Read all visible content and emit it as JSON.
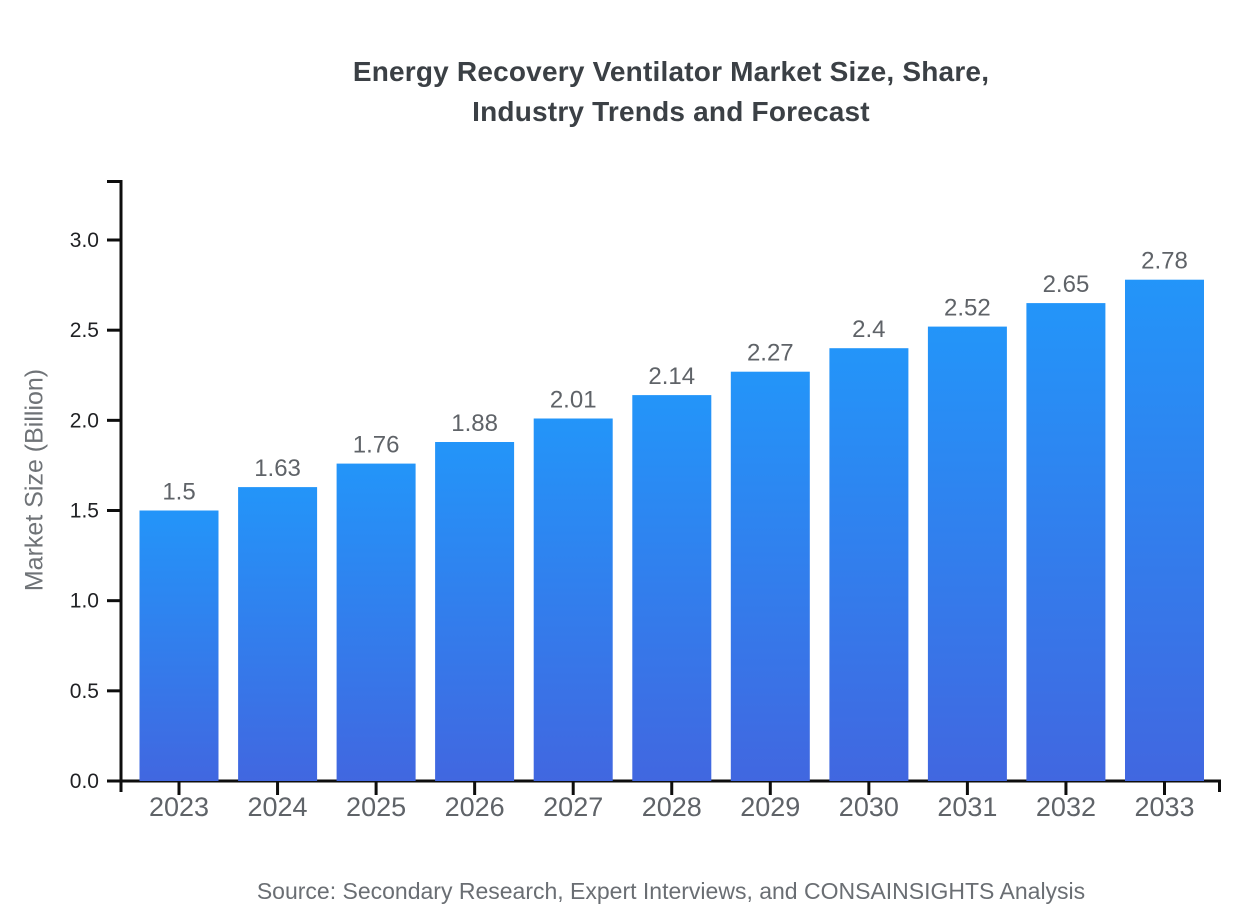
{
  "header": {
    "title": "Energy Recovery Ventilator Market Size, Share,\nIndustry Trends and Forecast"
  },
  "footer": {
    "source": "Source: Secondary Research, Expert Interviews, and CONSAINSIGHTS Analysis"
  },
  "chart_data": {
    "type": "bar",
    "title": "Energy Recovery Ventilator Market Size, Share, Industry Trends and Forecast",
    "xlabel": "",
    "ylabel": "Market Size (Billion)",
    "categories": [
      "2023",
      "2024",
      "2025",
      "2026",
      "2027",
      "2028",
      "2029",
      "2030",
      "2031",
      "2032",
      "2033"
    ],
    "values": [
      1.5,
      1.63,
      1.76,
      1.88,
      2.01,
      2.14,
      2.27,
      2.4,
      2.52,
      2.65,
      2.78
    ],
    "value_labels": [
      "1.5",
      "1.63",
      "1.76",
      "1.88",
      "2.01",
      "2.14",
      "2.27",
      "2.4",
      "2.52",
      "2.65",
      "2.78"
    ],
    "yticks": [
      0.0,
      0.5,
      1.0,
      1.5,
      2.0,
      2.5,
      3.0
    ],
    "ytick_labels": [
      "0.0",
      "0.5",
      "1.0",
      "1.5",
      "2.0",
      "2.5",
      "3.0"
    ],
    "ylim": [
      0,
      3.33
    ],
    "grid": false,
    "legend": false,
    "colors": {
      "bar_gradient_top": "#2395F9",
      "bar_gradient_bottom": "#4167E0",
      "axis": "#0e0e0e",
      "xtick_label": "#5f6368",
      "ytick_label": "#202124",
      "value_label": "#5f6368"
    }
  }
}
